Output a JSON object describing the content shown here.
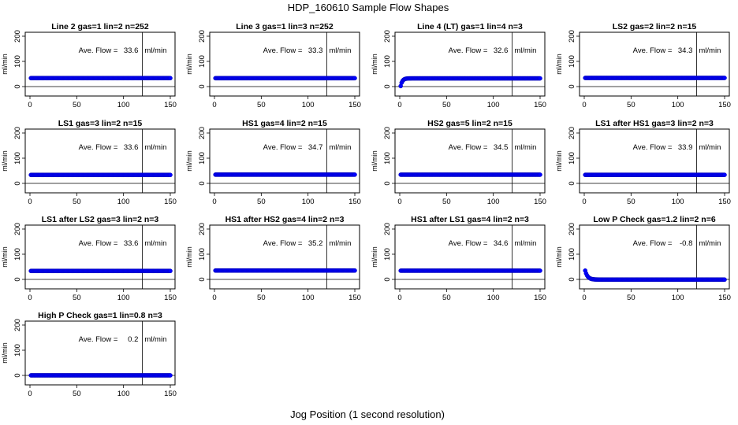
{
  "figure": {
    "title": "HDP_160610  Sample Flow Shapes",
    "xlabel": "Jog Position (1 second resolution)"
  },
  "chart_data": [
    {
      "type": "scatter",
      "title": "Line 2 gas=1 lin=2 n=252",
      "ylabel": "ml/min",
      "xlim": [
        0,
        150
      ],
      "ylim": [
        0,
        200
      ],
      "xticks": [
        0,
        50,
        100,
        150
      ],
      "yticks": [
        0,
        100,
        200
      ],
      "vline_x": 120,
      "hline_y": 0,
      "annotation": {
        "label": "Ave. Flow =",
        "value": "33.6",
        "unit": "ml/min"
      },
      "flow_shape": "flat",
      "level": 33.6,
      "x_range": [
        1,
        150
      ],
      "color": "#0000ff"
    },
    {
      "type": "scatter",
      "title": "Line 3 gas=1 lin=3 n=252",
      "ylabel": "ml/min",
      "xlim": [
        0,
        150
      ],
      "ylim": [
        0,
        200
      ],
      "xticks": [
        0,
        50,
        100,
        150
      ],
      "yticks": [
        0,
        100,
        200
      ],
      "vline_x": 120,
      "hline_y": 0,
      "annotation": {
        "label": "Ave. Flow =",
        "value": "33.3",
        "unit": "ml/min"
      },
      "flow_shape": "flat",
      "level": 33.3,
      "x_range": [
        1,
        150
      ],
      "color": "#0000ff"
    },
    {
      "type": "scatter",
      "title": "Line 4 (LT) gas=1 lin=4 n=3",
      "ylabel": "ml/min",
      "xlim": [
        0,
        150
      ],
      "ylim": [
        0,
        200
      ],
      "xticks": [
        0,
        50,
        100,
        150
      ],
      "yticks": [
        0,
        100,
        200
      ],
      "vline_x": 120,
      "hline_y": 0,
      "annotation": {
        "label": "Ave. Flow =",
        "value": "32.6",
        "unit": "ml/min"
      },
      "flow_shape": "ramp-up",
      "level": 32.6,
      "start_value": 2,
      "x_range": [
        1,
        150
      ],
      "color": "#0000ff"
    },
    {
      "type": "scatter",
      "title": "LS2 gas=2 lin=2 n=15",
      "ylabel": "ml/min",
      "xlim": [
        0,
        150
      ],
      "ylim": [
        0,
        200
      ],
      "xticks": [
        0,
        50,
        100,
        150
      ],
      "yticks": [
        0,
        100,
        200
      ],
      "vline_x": 120,
      "hline_y": 0,
      "annotation": {
        "label": "Ave. Flow =",
        "value": "34.3",
        "unit": "ml/min"
      },
      "flow_shape": "flat",
      "level": 34.3,
      "x_range": [
        1,
        150
      ],
      "color": "#0000ff"
    },
    {
      "type": "scatter",
      "title": "LS1 gas=3 lin=2 n=15",
      "ylabel": "ml/min",
      "xlim": [
        0,
        150
      ],
      "ylim": [
        0,
        200
      ],
      "xticks": [
        0,
        50,
        100,
        150
      ],
      "yticks": [
        0,
        100,
        200
      ],
      "vline_x": 120,
      "hline_y": 0,
      "annotation": {
        "label": "Ave. Flow =",
        "value": "33.6",
        "unit": "ml/min"
      },
      "flow_shape": "flat",
      "level": 33.6,
      "x_range": [
        1,
        150
      ],
      "color": "#0000ff"
    },
    {
      "type": "scatter",
      "title": "HS1 gas=4 lin=2 n=15",
      "ylabel": "ml/min",
      "xlim": [
        0,
        150
      ],
      "ylim": [
        0,
        200
      ],
      "xticks": [
        0,
        50,
        100,
        150
      ],
      "yticks": [
        0,
        100,
        200
      ],
      "vline_x": 120,
      "hline_y": 0,
      "annotation": {
        "label": "Ave. Flow =",
        "value": "34.7",
        "unit": "ml/min"
      },
      "flow_shape": "flat",
      "level": 34.7,
      "x_range": [
        1,
        150
      ],
      "color": "#0000ff"
    },
    {
      "type": "scatter",
      "title": "HS2 gas=5 lin=2 n=15",
      "ylabel": "ml/min",
      "xlim": [
        0,
        150
      ],
      "ylim": [
        0,
        200
      ],
      "xticks": [
        0,
        50,
        100,
        150
      ],
      "yticks": [
        0,
        100,
        200
      ],
      "vline_x": 120,
      "hline_y": 0,
      "annotation": {
        "label": "Ave. Flow =",
        "value": "34.5",
        "unit": "ml/min"
      },
      "flow_shape": "flat",
      "level": 34.5,
      "x_range": [
        1,
        150
      ],
      "color": "#0000ff"
    },
    {
      "type": "scatter",
      "title": "LS1 after HS1 gas=3 lin=2 n=3",
      "ylabel": "ml/min",
      "xlim": [
        0,
        150
      ],
      "ylim": [
        0,
        200
      ],
      "xticks": [
        0,
        50,
        100,
        150
      ],
      "yticks": [
        0,
        100,
        200
      ],
      "vline_x": 120,
      "hline_y": 0,
      "annotation": {
        "label": "Ave. Flow =",
        "value": "33.9",
        "unit": "ml/min"
      },
      "flow_shape": "flat",
      "level": 33.9,
      "x_range": [
        1,
        150
      ],
      "color": "#0000ff"
    },
    {
      "type": "scatter",
      "title": "LS1 after LS2 gas=3 lin=2 n=3",
      "ylabel": "ml/min",
      "xlim": [
        0,
        150
      ],
      "ylim": [
        0,
        200
      ],
      "xticks": [
        0,
        50,
        100,
        150
      ],
      "yticks": [
        0,
        100,
        200
      ],
      "vline_x": 120,
      "hline_y": 0,
      "annotation": {
        "label": "Ave. Flow =",
        "value": "33.6",
        "unit": "ml/min"
      },
      "flow_shape": "flat",
      "level": 33.6,
      "x_range": [
        1,
        150
      ],
      "color": "#0000ff"
    },
    {
      "type": "scatter",
      "title": "HS1 after HS2 gas=4 lin=2 n=3",
      "ylabel": "ml/min",
      "xlim": [
        0,
        150
      ],
      "ylim": [
        0,
        200
      ],
      "xticks": [
        0,
        50,
        100,
        150
      ],
      "yticks": [
        0,
        100,
        200
      ],
      "vline_x": 120,
      "hline_y": 0,
      "annotation": {
        "label": "Ave. Flow =",
        "value": "35.2",
        "unit": "ml/min"
      },
      "flow_shape": "flat",
      "level": 35.2,
      "x_range": [
        1,
        150
      ],
      "color": "#0000ff"
    },
    {
      "type": "scatter",
      "title": "HS1 after LS1 gas=4 lin=2 n=3",
      "ylabel": "ml/min",
      "xlim": [
        0,
        150
      ],
      "ylim": [
        0,
        200
      ],
      "xticks": [
        0,
        50,
        100,
        150
      ],
      "yticks": [
        0,
        100,
        200
      ],
      "vline_x": 120,
      "hline_y": 0,
      "annotation": {
        "label": "Ave. Flow =",
        "value": "34.6",
        "unit": "ml/min"
      },
      "flow_shape": "flat",
      "level": 34.6,
      "x_range": [
        1,
        150
      ],
      "color": "#0000ff"
    },
    {
      "type": "scatter",
      "title": "Low P Check gas=1.2 lin=2 n=6",
      "ylabel": "ml/min",
      "xlim": [
        0,
        150
      ],
      "ylim": [
        0,
        200
      ],
      "xticks": [
        0,
        50,
        100,
        150
      ],
      "yticks": [
        0,
        100,
        200
      ],
      "vline_x": 120,
      "hline_y": 0,
      "annotation": {
        "label": "Ave. Flow =",
        "value": "-0.8",
        "unit": "ml/min"
      },
      "flow_shape": "decay",
      "level": -0.8,
      "start_value": 35,
      "x_range": [
        1,
        150
      ],
      "color": "#0000ff"
    },
    {
      "type": "scatter",
      "title": "High P Check gas=1 lin=0.8 n=3",
      "ylabel": "ml/min",
      "xlim": [
        0,
        150
      ],
      "ylim": [
        0,
        200
      ],
      "xticks": [
        0,
        50,
        100,
        150
      ],
      "yticks": [
        0,
        100,
        200
      ],
      "vline_x": 120,
      "hline_y": 0,
      "annotation": {
        "label": "Ave. Flow =",
        "value": "0.2",
        "unit": "ml/min"
      },
      "flow_shape": "flat",
      "level": 0.2,
      "x_range": [
        1,
        150
      ],
      "color": "#0000ff"
    }
  ]
}
